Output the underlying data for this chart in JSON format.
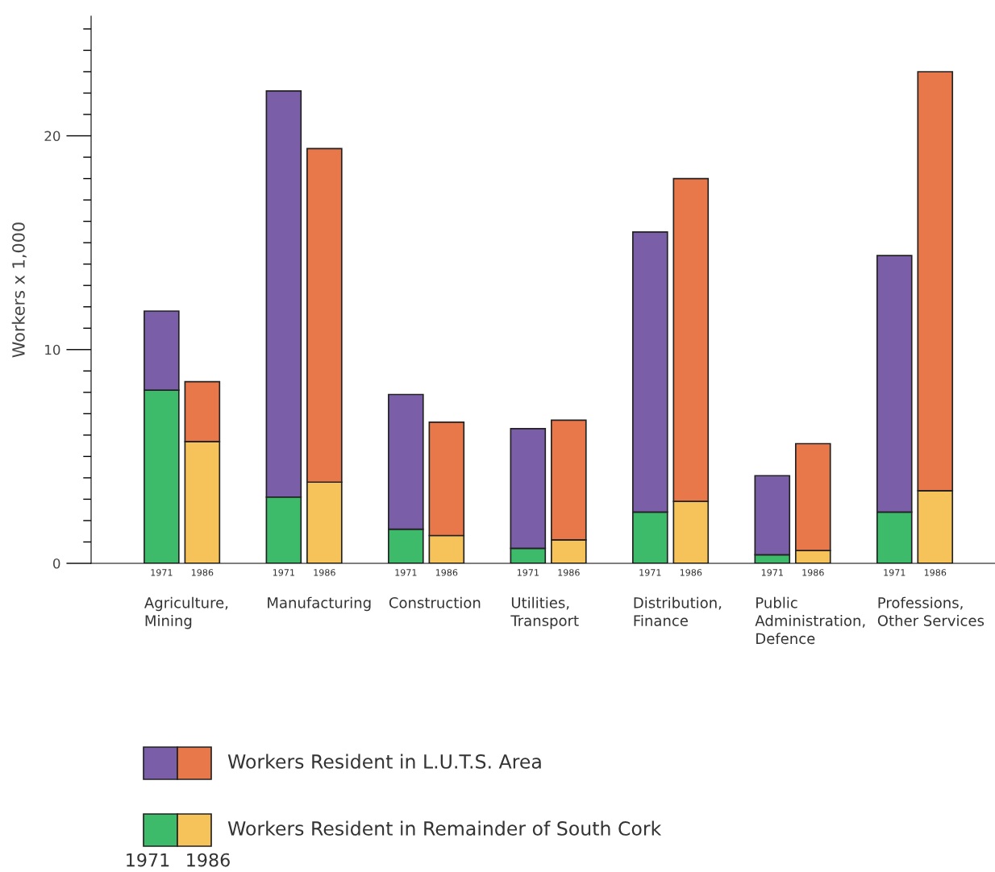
{
  "chart_data": {
    "type": "bar",
    "stacked": true,
    "ylabel": "Workers x 1,000",
    "categories": [
      "1971",
      "1986",
      null,
      "1971",
      "1986",
      null,
      "1971",
      "1986",
      null,
      "1971",
      "1986",
      null,
      "1971",
      "1986",
      null,
      "1971",
      "1986",
      null,
      "1971",
      "1986"
    ],
    "series": [
      {
        "name": "Workers Resident in Remainder of South Cork",
        "colors": [
          "#3dbb6a",
          "#f5c35a",
          null,
          "#3dbb6a",
          "#f5c35a",
          null,
          "#3dbb6a",
          "#f5c35a",
          null,
          "#3dbb6a",
          "#f5c35a",
          null,
          "#3dbb6a",
          "#f5c35a",
          null,
          "#3dbb6a",
          "#f5c35a",
          null,
          "#3dbb6a",
          "#f5c35a"
        ],
        "values": [
          8.1,
          5.7,
          null,
          3.1,
          3.8,
          null,
          1.6,
          1.3,
          null,
          0.7,
          1.1,
          null,
          2.4,
          2.9,
          null,
          0.4,
          0.6,
          null,
          2.4,
          3.4
        ]
      },
      {
        "name": "Workers Resident in L.U.T.S. Area",
        "colors": [
          "#7a5ea8",
          "#e8774a",
          null,
          "#7a5ea8",
          "#e8774a",
          null,
          "#7a5ea8",
          "#e8774a",
          null,
          "#7a5ea8",
          "#e8774a",
          null,
          "#7a5ea8",
          "#e8774a",
          null,
          "#7a5ea8",
          "#e8774a",
          null,
          "#7a5ea8",
          "#e8774a"
        ],
        "values": [
          3.7,
          2.8,
          null,
          19.0,
          15.6,
          null,
          6.3,
          5.3,
          null,
          5.6,
          5.6,
          null,
          13.1,
          15.1,
          null,
          3.7,
          5.0,
          null,
          12.0,
          19.6
        ]
      }
    ],
    "ylim": [
      0,
      25.6
    ],
    "yticks": [
      0,
      10,
      20
    ],
    "grid": false,
    "legend": "bottom",
    "annotations": [
      "Agriculture,\nMining",
      "Manufacturing",
      "Construction",
      "Utilities,\nTransport",
      "Distribution,\nFinance",
      "Public\nAdministration,\nDefence",
      "Professions,\nOther Services",
      "1971",
      "1986"
    ]
  }
}
